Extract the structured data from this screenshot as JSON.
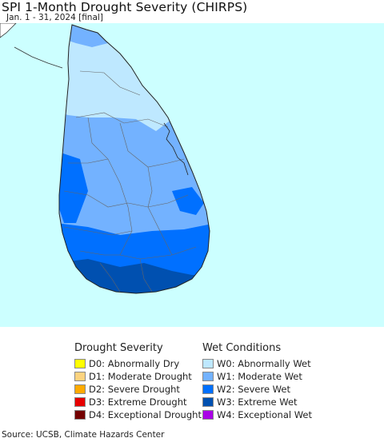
{
  "title": "SPI 1-Month Drought Severity (CHIRPS)",
  "subtitle": "Jan. 1 - 31, 2024 [final]",
  "source": "Source: UCSB, Climate Hazards Center",
  "colors": {
    "ocean": "#ccffff",
    "land_outside": "#ffffff",
    "border": "#555555"
  },
  "legend": {
    "drought": {
      "heading": "Drought Severity",
      "items": [
        {
          "label": "D0: Abnormally Dry",
          "color": "#ffff00"
        },
        {
          "label": "D1: Moderate Drought",
          "color": "#fcd37f"
        },
        {
          "label": "D2: Severe Drought",
          "color": "#ffaa00"
        },
        {
          "label": "D3: Extreme Drought",
          "color": "#e60000"
        },
        {
          "label": "D4: Exceptional Drought",
          "color": "#730000"
        }
      ]
    },
    "wet": {
      "heading": "Wet Conditions",
      "items": [
        {
          "label": "W0: Abnormally Wet",
          "color": "#bee8ff"
        },
        {
          "label": "W1: Moderate Wet",
          "color": "#73b2ff"
        },
        {
          "label": "W2: Severe Wet",
          "color": "#0070ff"
        },
        {
          "label": "W3: Extreme Wet",
          "color": "#0050b0"
        },
        {
          "label": "W4: Exceptional Wet",
          "color": "#a900e6"
        }
      ]
    }
  }
}
